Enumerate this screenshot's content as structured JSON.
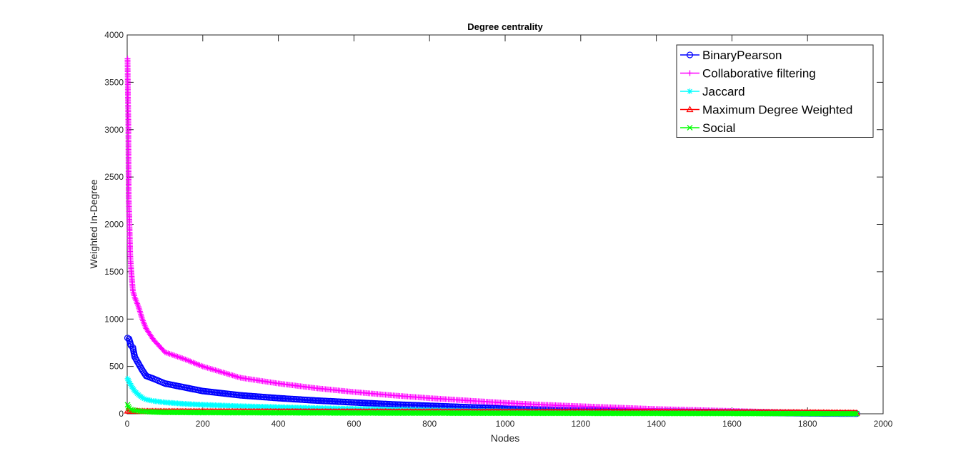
{
  "chart_data": {
    "type": "line",
    "title": "Degree centrality",
    "xlabel": "Nodes",
    "ylabel": "Weighted In-Degree",
    "xlim": [
      0,
      2000
    ],
    "ylim": [
      0,
      4000
    ],
    "xticks": [
      "0",
      "200",
      "400",
      "600",
      "800",
      "1000",
      "1200",
      "1400",
      "1600",
      "1800",
      "2000"
    ],
    "yticks": [
      "0",
      "500",
      "1000",
      "1500",
      "2000",
      "2500",
      "3000",
      "3500",
      "4000"
    ],
    "grid": false,
    "legend_position": "top-right",
    "series": [
      {
        "name": "BinaryPearson",
        "color": "#0000ff",
        "marker": "circle",
        "x": [
          1,
          5,
          10,
          15,
          20,
          30,
          40,
          50,
          70,
          100,
          150,
          200,
          300,
          400,
          500,
          600,
          700,
          800,
          900,
          1000,
          1100,
          1200,
          1300,
          1400,
          1500,
          1600,
          1700,
          1800,
          1930
        ],
        "y": [
          800,
          790,
          720,
          700,
          600,
          530,
          460,
          400,
          370,
          320,
          280,
          240,
          195,
          165,
          140,
          120,
          100,
          85,
          70,
          55,
          45,
          35,
          30,
          25,
          20,
          15,
          10,
          5,
          2
        ]
      },
      {
        "name": "Collaborative filtering",
        "color": "#ff00ff",
        "marker": "plus",
        "x": [
          1,
          2,
          3,
          4,
          6,
          8,
          10,
          15,
          20,
          30,
          40,
          50,
          70,
          100,
          150,
          200,
          250,
          300,
          400,
          500,
          600,
          700,
          800,
          900,
          1000,
          1100,
          1200,
          1300,
          1400,
          1500,
          1600,
          1700,
          1800,
          1930
        ],
        "y": [
          3750,
          3340,
          3090,
          2290,
          2000,
          1680,
          1550,
          1300,
          1230,
          1130,
          1000,
          900,
          780,
          650,
          580,
          500,
          440,
          380,
          320,
          270,
          230,
          195,
          165,
          140,
          115,
          95,
          80,
          65,
          50,
          40,
          30,
          20,
          12,
          5
        ]
      },
      {
        "name": "Jaccard",
        "color": "#00ffff",
        "marker": "star",
        "x": [
          1,
          5,
          10,
          20,
          30,
          40,
          50,
          70,
          100,
          150,
          200,
          300,
          400,
          500,
          600,
          700,
          800,
          900,
          1000,
          1200,
          1400,
          1600,
          1800,
          1930
        ],
        "y": [
          370,
          340,
          300,
          240,
          200,
          170,
          150,
          135,
          120,
          105,
          95,
          80,
          70,
          60,
          52,
          45,
          38,
          32,
          28,
          20,
          15,
          10,
          6,
          2
        ]
      },
      {
        "name": "Maximum Degree Weighted",
        "color": "#ff0000",
        "marker": "triangle",
        "x": [
          1,
          10,
          50,
          100,
          200,
          400,
          600,
          800,
          1000,
          1200,
          1400,
          1600,
          1800,
          1930
        ],
        "y": [
          30,
          28,
          25,
          24,
          23,
          22,
          21,
          20,
          19,
          18,
          17,
          15,
          12,
          8
        ]
      },
      {
        "name": "Social",
        "color": "#00ff00",
        "marker": "x",
        "x": [
          1,
          3,
          5,
          10,
          20,
          40,
          60,
          100,
          200,
          400,
          600,
          800,
          1000,
          1200,
          1400,
          1600,
          1800,
          1930
        ],
        "y": [
          95,
          75,
          60,
          45,
          35,
          25,
          20,
          15,
          12,
          10,
          8,
          7,
          6,
          5,
          4,
          3,
          2,
          1
        ]
      }
    ]
  }
}
